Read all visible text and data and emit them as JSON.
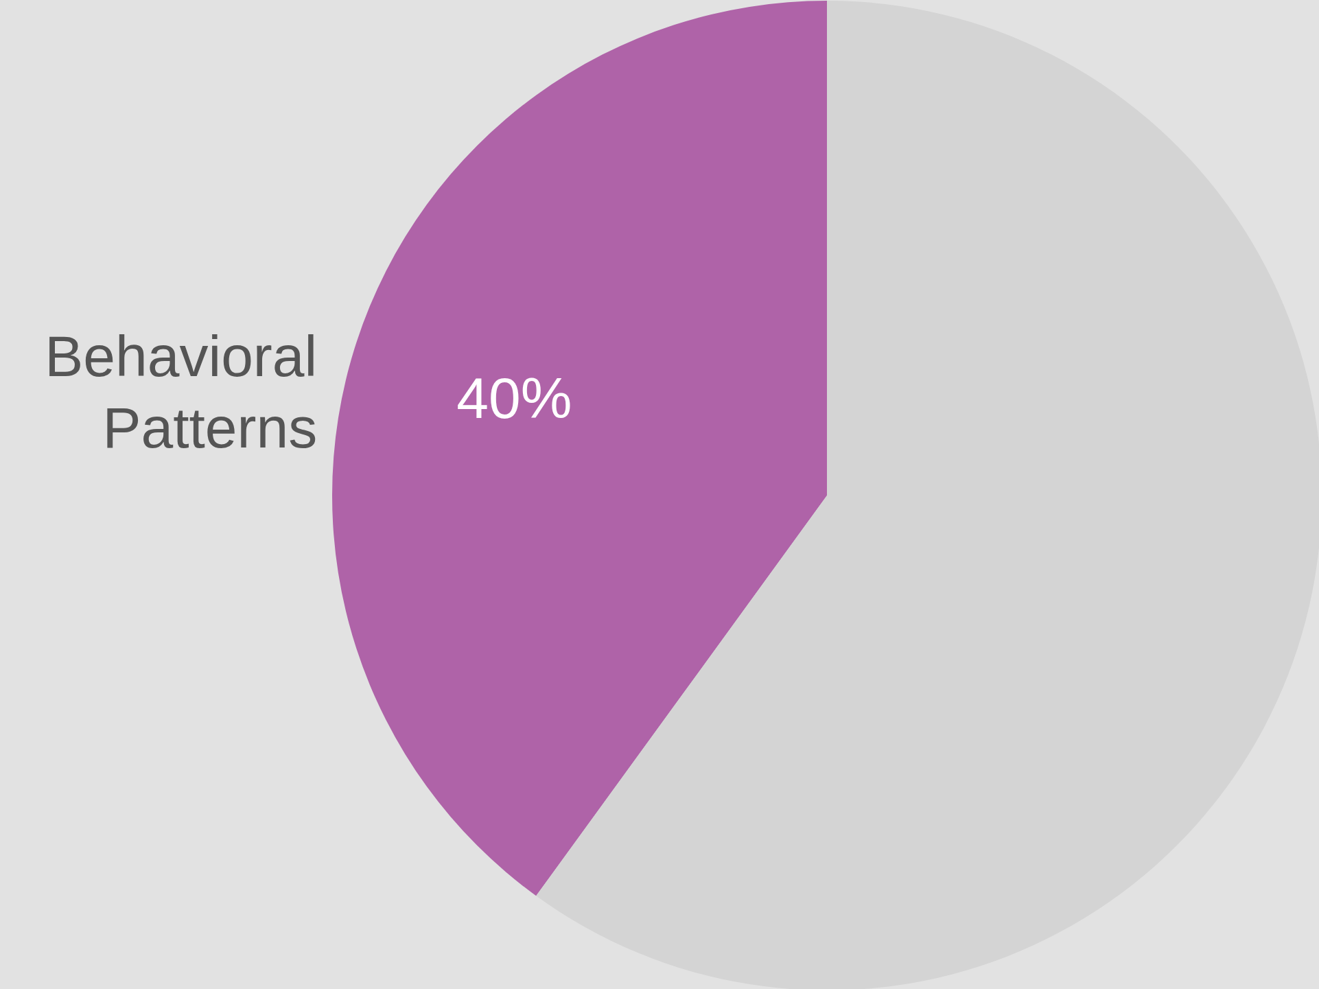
{
  "chart_data": {
    "type": "pie",
    "categories": [
      "Behavioral Patterns",
      null
    ],
    "values": [
      40,
      60
    ],
    "colors": [
      "#af63a8",
      "#d4d4d4"
    ],
    "value_labels": [
      "40%",
      null
    ]
  }
}
